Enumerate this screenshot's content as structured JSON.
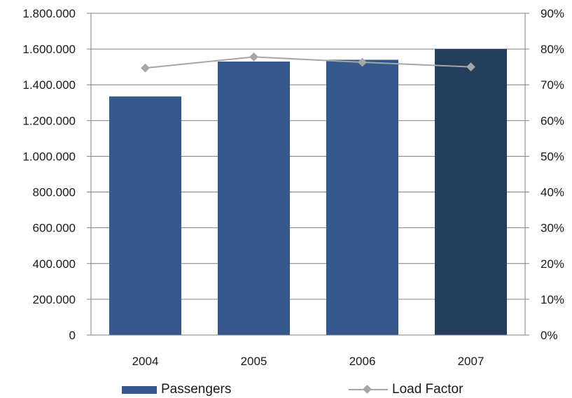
{
  "chart_data": {
    "type": "bar",
    "categories": [
      "2004",
      "2005",
      "2006",
      "2007"
    ],
    "series": [
      {
        "name": "Passengers",
        "type": "bar",
        "axis": "left",
        "values": [
          1335000,
          1530000,
          1540000,
          1600000
        ],
        "colors": [
          "#34598a",
          "#34598a",
          "#34598a",
          "#243e5e"
        ]
      },
      {
        "name": "Load Factor",
        "type": "line",
        "axis": "right",
        "values": [
          74.7,
          77.8,
          76.3,
          75.0
        ],
        "color": "#a6a6a6"
      }
    ],
    "left_axis": {
      "min": 0,
      "max": 1800000,
      "ticks": [
        "0",
        "200.000",
        "400.000",
        "600.000",
        "800.000",
        "1.000.000",
        "1.200.000",
        "1.400.000",
        "1.600.000",
        "1.800.000"
      ]
    },
    "right_axis": {
      "min": 0,
      "max": 90,
      "ticks": [
        "0%",
        "10%",
        "20%",
        "30%",
        "40%",
        "50%",
        "60%",
        "70%",
        "80%",
        "90%"
      ]
    },
    "grid": true,
    "legend_position": "bottom"
  }
}
